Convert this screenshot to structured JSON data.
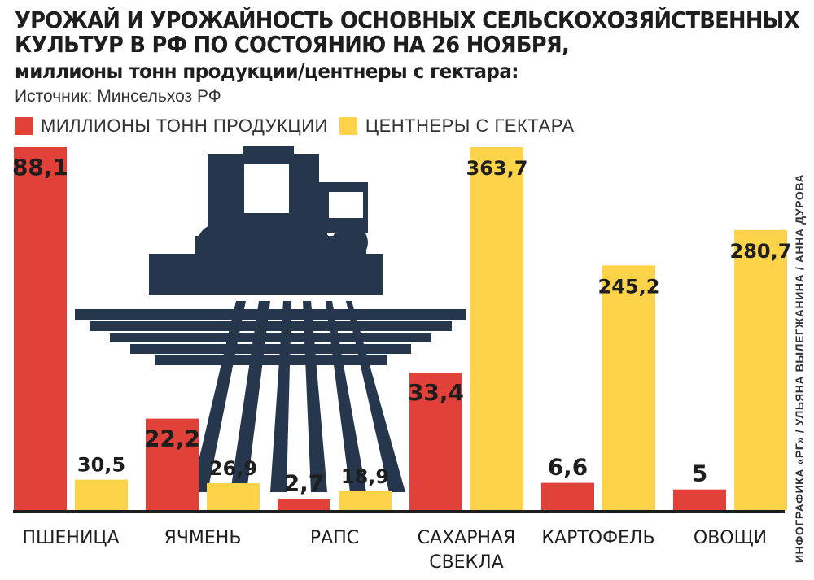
{
  "title_lines": [
    "УРОЖАЙ И УРОЖАЙНОСТЬ ОСНОВНЫХ СЕЛЬСКОХОЗЯЙСТВЕННЫХ",
    "КУЛЬТУР В РФ ПО СОСТОЯНИЮ НА 26 НОЯБРЯ,"
  ],
  "subtitle": "миллионы тонн продукции/центнеры с гектара:",
  "source": "Источник: Минсельхоз РФ",
  "credit": "ИНФОГРАФИКА «РГ» / УЛЬЯНА ВЫЛЕГЖАНИНА / АННА ДУРОВА",
  "colors": {
    "production": "#e2413a",
    "yield": "#fdd34a",
    "illustration": "#26364d",
    "axis": "#1e1e1e",
    "text": "#1e1e1e"
  },
  "illustration_icon": "combine-harvester-field-icon",
  "chart_data": {
    "type": "bar",
    "categories": [
      [
        "ПШЕНИЦА"
      ],
      [
        "ЯЧМЕНЬ"
      ],
      [
        "РАПС"
      ],
      [
        "САХАРНАЯ",
        "СВЕКЛА"
      ],
      [
        "КАРТОФЕЛЬ"
      ],
      [
        "ОВОЩИ"
      ]
    ],
    "series": [
      {
        "name": "МИЛЛИОНЫ ТОНН ПРОДУКЦИИ",
        "values": [
          88.1,
          22.2,
          2.7,
          33.4,
          6.6,
          5
        ],
        "labels": [
          "88,1",
          "22,2",
          "2,7",
          "33,4",
          "6,6",
          "5"
        ]
      },
      {
        "name": "ЦЕНТНЕРЫ С ГЕКТАРА",
        "values": [
          30.5,
          26.9,
          18.9,
          363.7,
          245.2,
          280.7
        ],
        "labels": [
          "30,5",
          "26,9",
          "18,9",
          "363,7",
          "245,2",
          "280,7"
        ]
      }
    ],
    "legend_position": "top-left",
    "grid": false
  }
}
